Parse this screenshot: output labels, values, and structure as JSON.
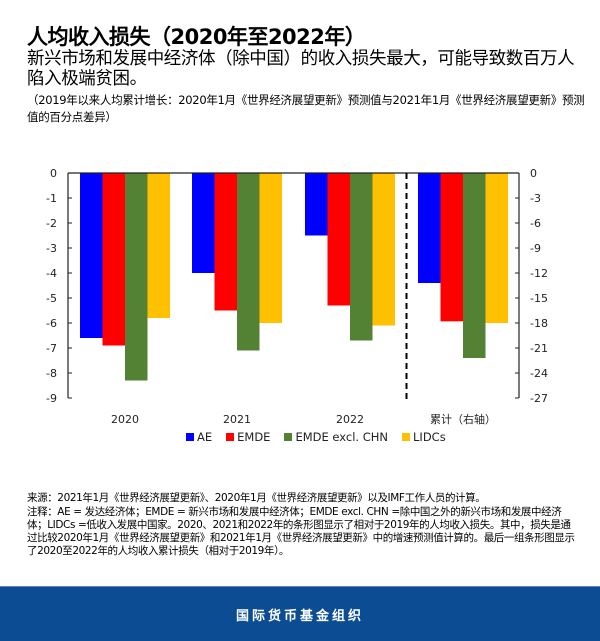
{
  "header": {
    "title": "人均收入损失（2020年至2022年）",
    "subtitle": "新兴市场和发展中经济体（除中国）的收入损失最大，可能导致数百万人陷入极端贫困。",
    "description": "（2019年以来人均累计增长：2020年1月《世界经济展望更新》预测值与2021年1月《世界经济展望更新》预测值的百分点差异）"
  },
  "chart_data": {
    "type": "bar",
    "title": "人均收入损失（2020年至2022年）",
    "categories": [
      "2020",
      "2021",
      "2022",
      "累计（右轴）"
    ],
    "series": [
      {
        "name": "AE",
        "color": "#0000ff",
        "values": [
          -6.6,
          -4.0,
          -2.5,
          -13.2
        ]
      },
      {
        "name": "EMDE",
        "color": "#ff0000",
        "values": [
          -6.9,
          -5.5,
          -5.3,
          -17.8
        ]
      },
      {
        "name": "EMDE excl. CHN",
        "color": "#548235",
        "values": [
          -8.3,
          -7.1,
          -6.7,
          -22.2
        ]
      },
      {
        "name": "LIDCs",
        "color": "#ffc000",
        "values": [
          -5.8,
          -6.0,
          -6.1,
          -18.0
        ]
      }
    ],
    "left_axis": {
      "ylim": [
        -9,
        0
      ],
      "ticks": [
        "0",
        "-1",
        "-2",
        "-3",
        "-4",
        "-5",
        "-6",
        "-7",
        "-8",
        "-9"
      ]
    },
    "right_axis": {
      "ylim": [
        -27,
        0
      ],
      "ticks": [
        "0",
        "-3",
        "-6",
        "-9",
        "-12",
        "-15",
        "-18",
        "-21",
        "-24",
        "-27"
      ],
      "applies_to": "累计（右轴）"
    },
    "xlabel": "",
    "ylabel": "",
    "grid": false,
    "legend_position": "bottom",
    "separator": "dashed vertical line before cumulative group"
  },
  "legend": [
    {
      "label": "AE",
      "color": "#0000ff"
    },
    {
      "label": "EMDE",
      "color": "#ff0000"
    },
    {
      "label": "EMDE excl. CHN",
      "color": "#548235"
    },
    {
      "label": "LIDCs",
      "color": "#ffc000"
    }
  ],
  "source": "来源：2021年1月《世界经济展望更新》、2020年1月《世界经济展望更新》以及IMF工作人员的计算。",
  "notes": "注释：AE = 发达经济体；EMDE = 新兴市场和发展中经济体；EMDE excl. CHN =除中国之外的新兴市场和发展中经济体；LIDCs =低收入发展中国家。2020、2021和2022年的条形图显示了相对于2019年的人均收入损失。其中，损失是通过比较2020年1月《世界经济展望更新》和2021年1月《世界经济展望更新》中的增速预测值计算的。最后一组条形图显示了2020至2022年的人均收入累计损失（相对于2019年）。",
  "footer": {
    "org_name": "国际货币基金组织"
  }
}
